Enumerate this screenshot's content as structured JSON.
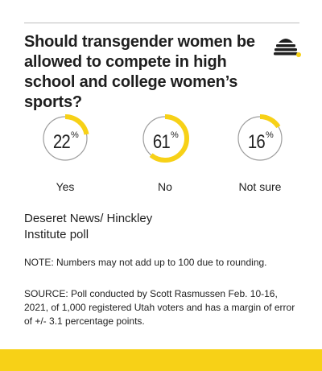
{
  "headline": "Should transgender women be allowed to compete in high school and college women’s sports?",
  "logo_icon": "beehive-logo-icon",
  "colors": {
    "accent": "#f7d117",
    "ring_track": "#9e9e9e",
    "text": "#222222"
  },
  "chart_data": {
    "type": "donut",
    "title": "Should transgender women be allowed to compete in high school and college women’s sports?",
    "percent_suffix": "%",
    "categories": [
      "Yes",
      "No",
      "Not sure"
    ],
    "values": [
      22,
      61,
      16
    ],
    "display_values": [
      "22",
      "61",
      "16"
    ]
  },
  "source_title": "Deseret News/ Hinckley Institute poll",
  "note": "NOTE: Numbers may not add up to 100 due to rounding.",
  "source_text": "SOURCE: Poll conducted by Scott Rasmussen Feb. 10-16, 2021, of 1,000 registered Utah voters and has a margin of error of +/- 3.1 percentage points."
}
